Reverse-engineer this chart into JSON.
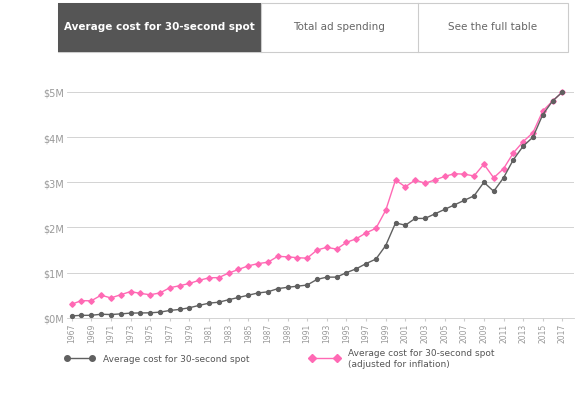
{
  "years": [
    1967,
    1968,
    1969,
    1970,
    1971,
    1972,
    1973,
    1974,
    1975,
    1976,
    1977,
    1978,
    1979,
    1980,
    1981,
    1982,
    1983,
    1984,
    1985,
    1986,
    1987,
    1988,
    1989,
    1990,
    1991,
    1992,
    1993,
    1994,
    1995,
    1996,
    1997,
    1998,
    1999,
    2000,
    2001,
    2002,
    2003,
    2004,
    2005,
    2006,
    2007,
    2008,
    2009,
    2010,
    2011,
    2012,
    2013,
    2014,
    2015,
    2016,
    2017
  ],
  "nominal": [
    42000,
    54000,
    55000,
    78000,
    72000,
    86000,
    103500,
    107000,
    110000,
    125000,
    162000,
    185000,
    222000,
    275000,
    324000,
    345000,
    400000,
    450000,
    500000,
    550000,
    575000,
    645000,
    675000,
    700000,
    725000,
    850000,
    900000,
    900000,
    1000000,
    1085000,
    1200000,
    1300000,
    1600000,
    2100000,
    2050000,
    2200000,
    2200000,
    2300000,
    2400000,
    2500000,
    2600000,
    2700000,
    3000000,
    2800000,
    3100000,
    3500000,
    3800000,
    4000000,
    4500000,
    4800000,
    5000000
  ],
  "adjusted": [
    300000,
    380000,
    375000,
    500000,
    440000,
    510000,
    580000,
    540000,
    510000,
    550000,
    665000,
    710000,
    760000,
    830000,
    885000,
    890000,
    990000,
    1070000,
    1150000,
    1200000,
    1230000,
    1360000,
    1350000,
    1330000,
    1320000,
    1500000,
    1560000,
    1520000,
    1670000,
    1750000,
    1880000,
    1980000,
    2380000,
    3050000,
    2900000,
    3050000,
    2980000,
    3050000,
    3130000,
    3190000,
    3180000,
    3140000,
    3400000,
    3100000,
    3300000,
    3650000,
    3900000,
    4100000,
    4580000,
    4800000,
    5000000
  ],
  "nominal_color": "#606060",
  "adjusted_color": "#FF69B4",
  "bg_color": "#FFFFFF",
  "grid_color": "#CCCCCC",
  "tab_active_bg": "#555555",
  "tab_active_fg": "#FFFFFF",
  "tab_inactive_fg": "#666666",
  "tab_border": "#CCCCCC",
  "tab_labels": [
    "Average cost for 30-second spot",
    "Total ad spending",
    "See the full table"
  ],
  "legend_label1": "Average cost for 30-second spot",
  "legend_label2": "Average cost for 30-second spot\n(adjusted for inflation)",
  "ytick_labels": [
    "$0M",
    "$1M",
    "$2M",
    "$3M",
    "$4M",
    "$5M"
  ],
  "ytick_values": [
    0,
    1000000,
    2000000,
    3000000,
    4000000,
    5000000
  ],
  "ylim_max": 5500000,
  "xlim_start": 1966.5,
  "xlim_end": 2018.2
}
